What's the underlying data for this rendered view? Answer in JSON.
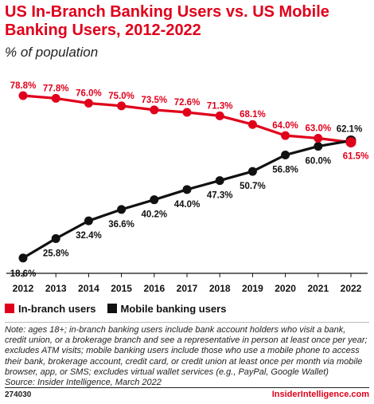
{
  "title": "US In-Branch Banking Users vs. US Mobile Banking Users, 2012-2022",
  "subtitle": "% of population",
  "colors": {
    "accent": "#e0001b",
    "mobile": "#111111"
  },
  "chart_data": {
    "type": "line",
    "x": [
      "2012",
      "2013",
      "2014",
      "2015",
      "2016",
      "2017",
      "2018",
      "2019",
      "2020",
      "2021",
      "2022"
    ],
    "series": [
      {
        "name": "In-branch users",
        "color": "#e0001b",
        "values": [
          78.8,
          77.8,
          76.0,
          75.0,
          73.5,
          72.6,
          71.3,
          68.1,
          64.0,
          63.0,
          61.5
        ],
        "labels": [
          "78.8%",
          "77.8%",
          "76.0%",
          "75.0%",
          "73.5%",
          "72.6%",
          "71.3%",
          "68.1%",
          "64.0%",
          "63.0%",
          "61.5%"
        ]
      },
      {
        "name": "Mobile banking users",
        "color": "#111111",
        "values": [
          18.6,
          25.8,
          32.4,
          36.6,
          40.2,
          44.0,
          47.3,
          50.7,
          56.8,
          60.0,
          62.1
        ],
        "labels": [
          "18.6%",
          "25.8%",
          "32.4%",
          "36.6%",
          "40.2%",
          "44.0%",
          "47.3%",
          "50.7%",
          "56.8%",
          "60.0%",
          "62.1%"
        ]
      }
    ],
    "ylim": [
      15,
      85
    ],
    "grid": false,
    "legend_position": "bottom-left"
  },
  "legend": [
    {
      "label": "In-branch users",
      "color": "#e0001b"
    },
    {
      "label": "Mobile banking users",
      "color": "#111111"
    }
  ],
  "note": "Note: ages 18+; in-branch banking users include bank account holders who visit a bank, credit union, or a brokerage branch and see a representative in person at least once per year; excludes ATM visits; mobile banking users include those who use a mobile phone to access their bank, brokerage account, credit card, or credit union at least once per month via mobile browser, app, or SMS; excludes virtual wallet services (e.g., PayPal, Google Wallet)",
  "source": "Source: Insider Intelligence, March 2022",
  "footer": {
    "id": "274030",
    "brand": "InsiderIntelligence.com"
  }
}
